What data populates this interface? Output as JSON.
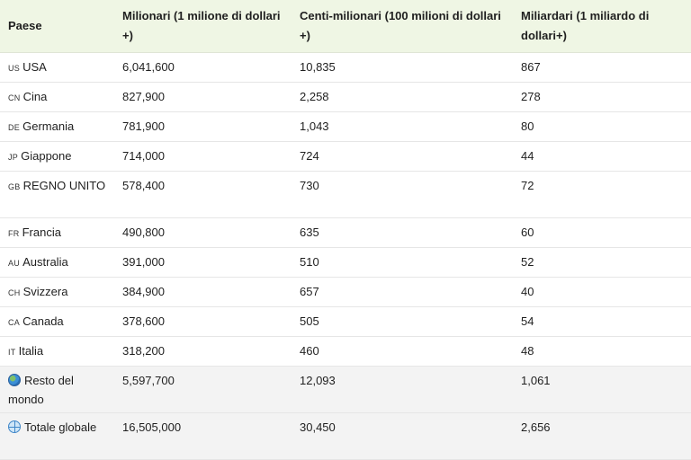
{
  "table": {
    "headers": [
      "Paese",
      "Milionari (1 milione di dollari +)",
      "Centi-milionari (100 milioni di dollari +)",
      "Miliardari (1 miliardo di dollari+)"
    ],
    "rows": [
      {
        "code": "US",
        "country": "USA",
        "millionaires": "6,041,600",
        "centi": "10,835",
        "billionaires": "867"
      },
      {
        "code": "CN",
        "country": "Cina",
        "millionaires": "827,900",
        "centi": "2,258",
        "billionaires": "278"
      },
      {
        "code": "DE",
        "country": "Germania",
        "millionaires": "781,900",
        "centi": "1,043",
        "billionaires": "80"
      },
      {
        "code": "JP",
        "country": "Giappone",
        "millionaires": "714,000",
        "centi": "724",
        "billionaires": "44"
      },
      {
        "code": "GB",
        "country": "REGNO UNITO",
        "millionaires": "578,400",
        "centi": "730",
        "billionaires": "72"
      },
      {
        "code": "FR",
        "country": "Francia",
        "millionaires": "490,800",
        "centi": "635",
        "billionaires": "60"
      },
      {
        "code": "AU",
        "country": "Australia",
        "millionaires": "391,000",
        "centi": "510",
        "billionaires": "52"
      },
      {
        "code": "CH",
        "country": "Svizzera",
        "millionaires": "384,900",
        "centi": "657",
        "billionaires": "40"
      },
      {
        "code": "CA",
        "country": "Canada",
        "millionaires": "378,600",
        "centi": "505",
        "billionaires": "54"
      },
      {
        "code": "IT",
        "country": "Italia",
        "millionaires": "318,200",
        "centi": "460",
        "billionaires": "48"
      },
      {
        "icon": "globe-earth-icon",
        "country": "Resto del mondo",
        "millionaires": "5,597,700",
        "centi": "12,093",
        "billionaires": "1,061"
      },
      {
        "icon": "globe-meridians-icon",
        "country": "Totale globale",
        "millionaires": "16,505,000",
        "centi": "30,450",
        "billionaires": "2,656"
      }
    ]
  }
}
